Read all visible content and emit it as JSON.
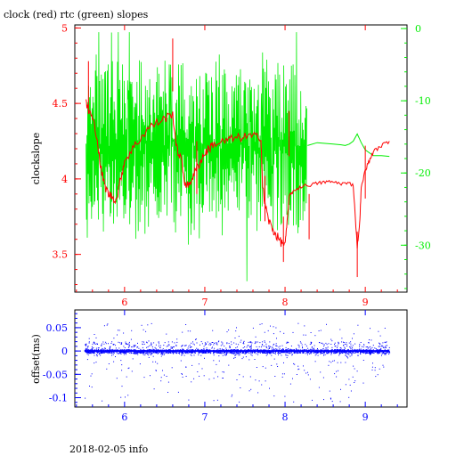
{
  "colors": {
    "red": "#ff0000",
    "green": "#00ee00",
    "blue": "#0000ff",
    "frame": "#000000"
  },
  "footer_text": "2018-02-05 info",
  "chart_data": [
    {
      "type": "line",
      "title": "clock (red) rtc (green) slopes",
      "ylabel": "clockslope",
      "x_ticks": [
        "6",
        "7",
        "8",
        "9"
      ],
      "xlim": [
        5.38,
        9.52
      ],
      "grid": false,
      "left_axis": {
        "ylim": [
          3.25,
          5.02
        ],
        "ticks": [
          "3.5",
          "4",
          "4.5",
          "5"
        ],
        "color": "#ff0000"
      },
      "right_axis": {
        "ylim": [
          -36.5,
          0.5
        ],
        "ticks": [
          "-30",
          "-20",
          "-10",
          "0"
        ],
        "color": "#00ee00"
      },
      "series": [
        {
          "name": "clock",
          "axis": "left",
          "color": "#ff0000",
          "x": [
            5.52,
            5.55,
            5.6,
            5.65,
            5.7,
            5.75,
            5.8,
            5.85,
            5.9,
            5.95,
            6.0,
            6.1,
            6.2,
            6.3,
            6.4,
            6.5,
            6.6,
            6.65,
            6.7,
            6.75,
            6.8,
            6.85,
            6.9,
            6.95,
            7.0,
            7.05,
            7.1,
            7.2,
            7.3,
            7.4,
            7.5,
            7.6,
            7.7,
            7.72,
            7.75,
            7.8,
            7.85,
            7.9,
            7.95,
            8.0,
            8.02,
            8.05,
            8.1,
            8.2,
            8.3,
            8.4,
            8.5,
            8.6,
            8.7,
            8.8,
            8.85,
            8.9,
            8.93,
            8.95,
            9.0,
            9.05,
            9.1,
            9.2,
            9.3
          ],
          "y": [
            4.5,
            4.46,
            4.4,
            4.3,
            4.08,
            3.96,
            3.9,
            3.88,
            3.86,
            4.0,
            4.12,
            4.2,
            4.27,
            4.34,
            4.37,
            4.4,
            4.43,
            4.2,
            4.14,
            3.98,
            3.95,
            4.02,
            4.07,
            4.12,
            4.17,
            4.2,
            4.23,
            4.24,
            4.26,
            4.27,
            4.28,
            4.28,
            4.28,
            3.95,
            3.83,
            3.72,
            3.66,
            3.62,
            3.58,
            3.57,
            3.68,
            3.88,
            3.92,
            3.95,
            3.96,
            3.97,
            3.98,
            3.98,
            3.97,
            3.97,
            3.96,
            3.55,
            3.7,
            3.94,
            4.06,
            4.12,
            4.18,
            4.22,
            4.25
          ]
        },
        {
          "name": "rtc",
          "axis": "right",
          "color": "#00ee00",
          "x": [
            8.28,
            8.4,
            8.5,
            8.6,
            8.7,
            8.75,
            8.8,
            8.85,
            8.9,
            8.95,
            9.0,
            9.1,
            9.2,
            9.3
          ],
          "y": [
            -16.2,
            -15.8,
            -15.9,
            -16.0,
            -16.1,
            -16.2,
            -16.0,
            -15.6,
            -14.6,
            -15.8,
            -16.8,
            -17.6,
            -17.6,
            -17.7
          ]
        }
      ]
    },
    {
      "type": "scatter",
      "title": "",
      "ylabel": "offset(ms)",
      "x_ticks": [
        "6",
        "7",
        "8",
        "9"
      ],
      "xlim": [
        5.38,
        9.52
      ],
      "ylim": [
        -0.12,
        0.088
      ],
      "y_ticks": [
        "-0.1",
        "-0.05",
        "0",
        "0.05"
      ],
      "grid": false,
      "series": [
        {
          "name": "offset",
          "color": "#0000ff",
          "x_range": [
            5.5,
            9.3
          ],
          "center": 0.0
        }
      ]
    }
  ]
}
